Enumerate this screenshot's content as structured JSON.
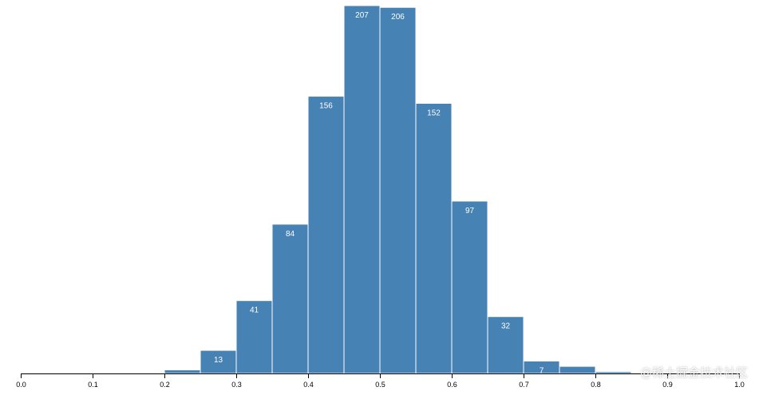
{
  "chart_data": {
    "type": "bar",
    "subtype": "histogram",
    "bins": [
      {
        "x0": 0.0,
        "x1": 0.05,
        "count": 0
      },
      {
        "x0": 0.05,
        "x1": 0.1,
        "count": 0
      },
      {
        "x0": 0.1,
        "x1": 0.15,
        "count": 0
      },
      {
        "x0": 0.15,
        "x1": 0.2,
        "count": 0
      },
      {
        "x0": 0.2,
        "x1": 0.25,
        "count": 2,
        "label": ""
      },
      {
        "x0": 0.25,
        "x1": 0.3,
        "count": 13,
        "label": "13"
      },
      {
        "x0": 0.3,
        "x1": 0.35,
        "count": 41,
        "label": "41"
      },
      {
        "x0": 0.35,
        "x1": 0.4,
        "count": 84,
        "label": "84"
      },
      {
        "x0": 0.4,
        "x1": 0.45,
        "count": 156,
        "label": "156"
      },
      {
        "x0": 0.45,
        "x1": 0.5,
        "count": 207,
        "label": "207"
      },
      {
        "x0": 0.5,
        "x1": 0.55,
        "count": 206,
        "label": "206"
      },
      {
        "x0": 0.55,
        "x1": 0.6,
        "count": 152,
        "label": "152"
      },
      {
        "x0": 0.6,
        "x1": 0.65,
        "count": 97,
        "label": "97"
      },
      {
        "x0": 0.65,
        "x1": 0.7,
        "count": 32,
        "label": "32"
      },
      {
        "x0": 0.7,
        "x1": 0.75,
        "count": 7,
        "label": "7"
      },
      {
        "x0": 0.75,
        "x1": 0.8,
        "count": 4,
        "label": ""
      },
      {
        "x0": 0.8,
        "x1": 0.85,
        "count": 1,
        "label": ""
      },
      {
        "x0": 0.85,
        "x1": 0.9,
        "count": 0
      },
      {
        "x0": 0.9,
        "x1": 0.95,
        "count": 0
      },
      {
        "x0": 0.95,
        "x1": 1.0,
        "count": 0
      }
    ],
    "xlim": [
      0,
      1
    ],
    "ylim": [
      0,
      207
    ],
    "x_ticks": [
      "0.0",
      "0.1",
      "0.2",
      "0.3",
      "0.4",
      "0.5",
      "0.6",
      "0.7",
      "0.8",
      "0.9",
      "1.0"
    ],
    "title": "",
    "xlabel": "",
    "ylabel": "",
    "grid": false,
    "bar_color": "#4682b4",
    "label_color": "#ffffff"
  },
  "watermark": "@稀土掘金技术社区"
}
